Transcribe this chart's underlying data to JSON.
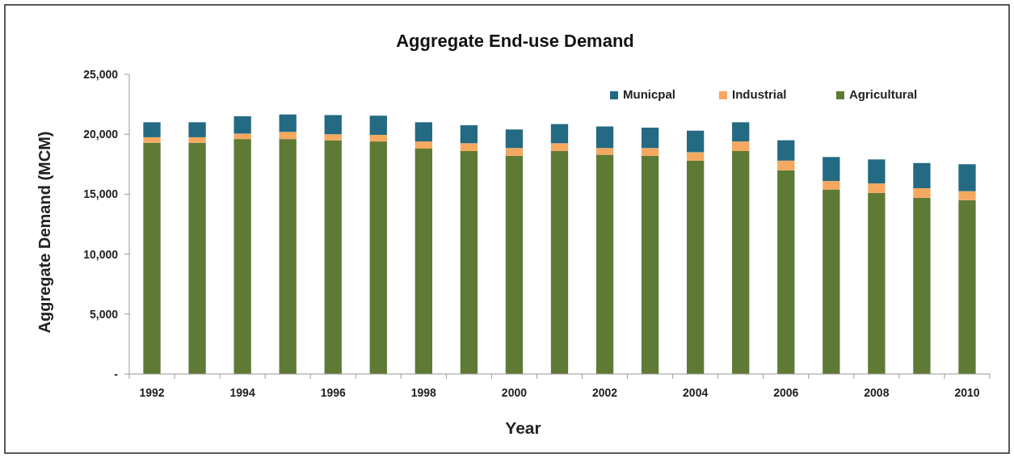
{
  "chart_data": {
    "type": "bar",
    "title": "Aggregate End-use Demand",
    "xlabel": "Year",
    "ylabel": "Aggregate Demand (MCM)",
    "categories": [
      "1992",
      null,
      "1994",
      null,
      "1996",
      null,
      "1998",
      null,
      "2000",
      null,
      "2002",
      null,
      "2004",
      null,
      "2006",
      null,
      "2008",
      null,
      "2010"
    ],
    "stacked": true,
    "series": [
      {
        "name": "Agricultural",
        "color": "#5f7a34",
        "values": [
          19300,
          19300,
          19600,
          19600,
          19500,
          19400,
          18800,
          18600,
          18200,
          18600,
          18300,
          18200,
          17800,
          18600,
          17000,
          15400,
          15100,
          14700,
          14500
        ]
      },
      {
        "name": "Industrial",
        "color": "#f5a860",
        "values": [
          450,
          450,
          450,
          600,
          500,
          550,
          600,
          650,
          650,
          650,
          550,
          650,
          700,
          800,
          800,
          700,
          800,
          800,
          750
        ]
      },
      {
        "name": "Municpal",
        "color": "#246a82",
        "values": [
          1250,
          1250,
          1450,
          1450,
          1600,
          1600,
          1600,
          1500,
          1550,
          1600,
          1800,
          1700,
          1800,
          1600,
          1700,
          2000,
          2000,
          2100,
          2250
        ]
      }
    ],
    "ylim": [
      0,
      25000
    ],
    "yticks": [
      {
        "value": 0,
        "label": "-"
      },
      {
        "value": 5000,
        "label": "5,000"
      },
      {
        "value": 10000,
        "label": "10,000"
      },
      {
        "value": 15000,
        "label": "15,000"
      },
      {
        "value": 20000,
        "label": "20,000"
      },
      {
        "value": 25000,
        "label": "25,000"
      }
    ],
    "legend": "top right"
  }
}
